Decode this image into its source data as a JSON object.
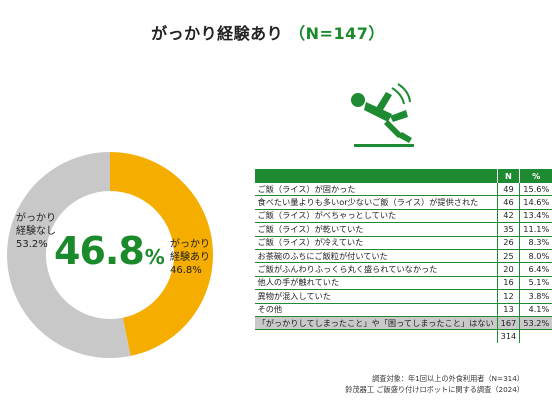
{
  "title": {
    "main": "がっかり経験あり",
    "n": "（N=147）"
  },
  "chart_data": [
    {
      "type": "pie",
      "style": "donut",
      "slices": [
        {
          "label_lines": [
            "がっかり",
            "経験あり",
            "46.8%"
          ],
          "value": 46.8,
          "color": "#f5ad00"
        },
        {
          "label_lines": [
            "がっかり",
            "経験なし",
            "53.2%"
          ],
          "value": 53.2,
          "color": "#c8c8c8"
        }
      ],
      "center_value": "46.8",
      "center_unit": "%",
      "center_color": "#1a8a2b"
    },
    {
      "type": "table",
      "columns": [
        "",
        "N",
        "%"
      ],
      "rows": [
        {
          "label": "ご飯（ライス）が固かった",
          "n": "49",
          "pct": "15.6%"
        },
        {
          "label": "食べたい量よりも多いor少ないご飯（ライス）が提供された",
          "n": "46",
          "pct": "14.6%"
        },
        {
          "label": "ご飯（ライス）がべちゃっとしていた",
          "n": "42",
          "pct": "13.4%"
        },
        {
          "label": "ご飯（ライス）が乾いていた",
          "n": "35",
          "pct": "11.1%"
        },
        {
          "label": "ご飯（ライス）が冷えていた",
          "n": "26",
          "pct": "8.3%"
        },
        {
          "label": "お茶碗のふちにご飯粒が付いていた",
          "n": "25",
          "pct": "8.0%"
        },
        {
          "label": "ご飯がふんわりふっくら丸く盛られていなかった",
          "n": "20",
          "pct": "6.4%"
        },
        {
          "label": "他人の手が触れていた",
          "n": "16",
          "pct": "5.1%"
        },
        {
          "label": "異物が混入していた",
          "n": "12",
          "pct": "3.8%"
        },
        {
          "label": "その他",
          "n": "13",
          "pct": "4.1%"
        },
        {
          "label": "「がっかりしてしまったこと」や「困ってしまったこと」はない",
          "n": "167",
          "pct": "53.2%"
        }
      ],
      "total": "314",
      "header_color": "#1e8a31",
      "highlight_color": "#c9c9c9"
    }
  ],
  "notes": [
    "調査対象：年1回以上の外食利用者（N=314）",
    "鈴茂器工 ご飯盛り付けロボットに関する調査（2024）"
  ],
  "icon": "falling-person-icon",
  "accent_color": "#1a8a2b"
}
